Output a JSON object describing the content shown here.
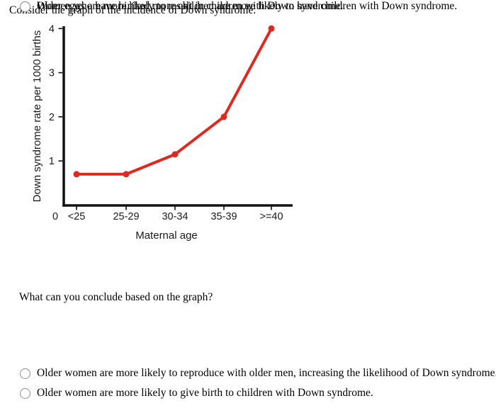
{
  "intro": "Consider the graph of the incidence of Down syndrome.",
  "chart_data": {
    "type": "line",
    "categories": [
      "<25",
      "25-29",
      "30-34",
      "35-39",
      ">=40"
    ],
    "values": [
      0.7,
      0.7,
      1.15,
      2.0,
      4.0
    ],
    "title": "",
    "xlabel": "Maternal age",
    "ylabel": "Down syndrome rate per 1000 births",
    "yticks": [
      1,
      2,
      3,
      4
    ],
    "origin_label": "0",
    "ylim": [
      0,
      4.1
    ],
    "grid": false,
    "legend": false,
    "line_color": "#dc2a20",
    "axis_color": "#111111",
    "marker": "circle"
  },
  "question": "What can you conclude based on the graph?",
  "options": [
    {
      "label": "Older women are more likely to reproduce with older men, increasing the likelihood of Down syndrome.",
      "selected": false
    },
    {
      "label": "Older women are more likely to give birth to children with Down syndrome.",
      "selected": false
    },
    {
      "label": "Women who have birthed more children are more likely to have children with Down syndrome.",
      "selected": false
    },
    {
      "label": "Older eggs are more likely to result in children with Down syndrome.",
      "selected": false
    }
  ]
}
